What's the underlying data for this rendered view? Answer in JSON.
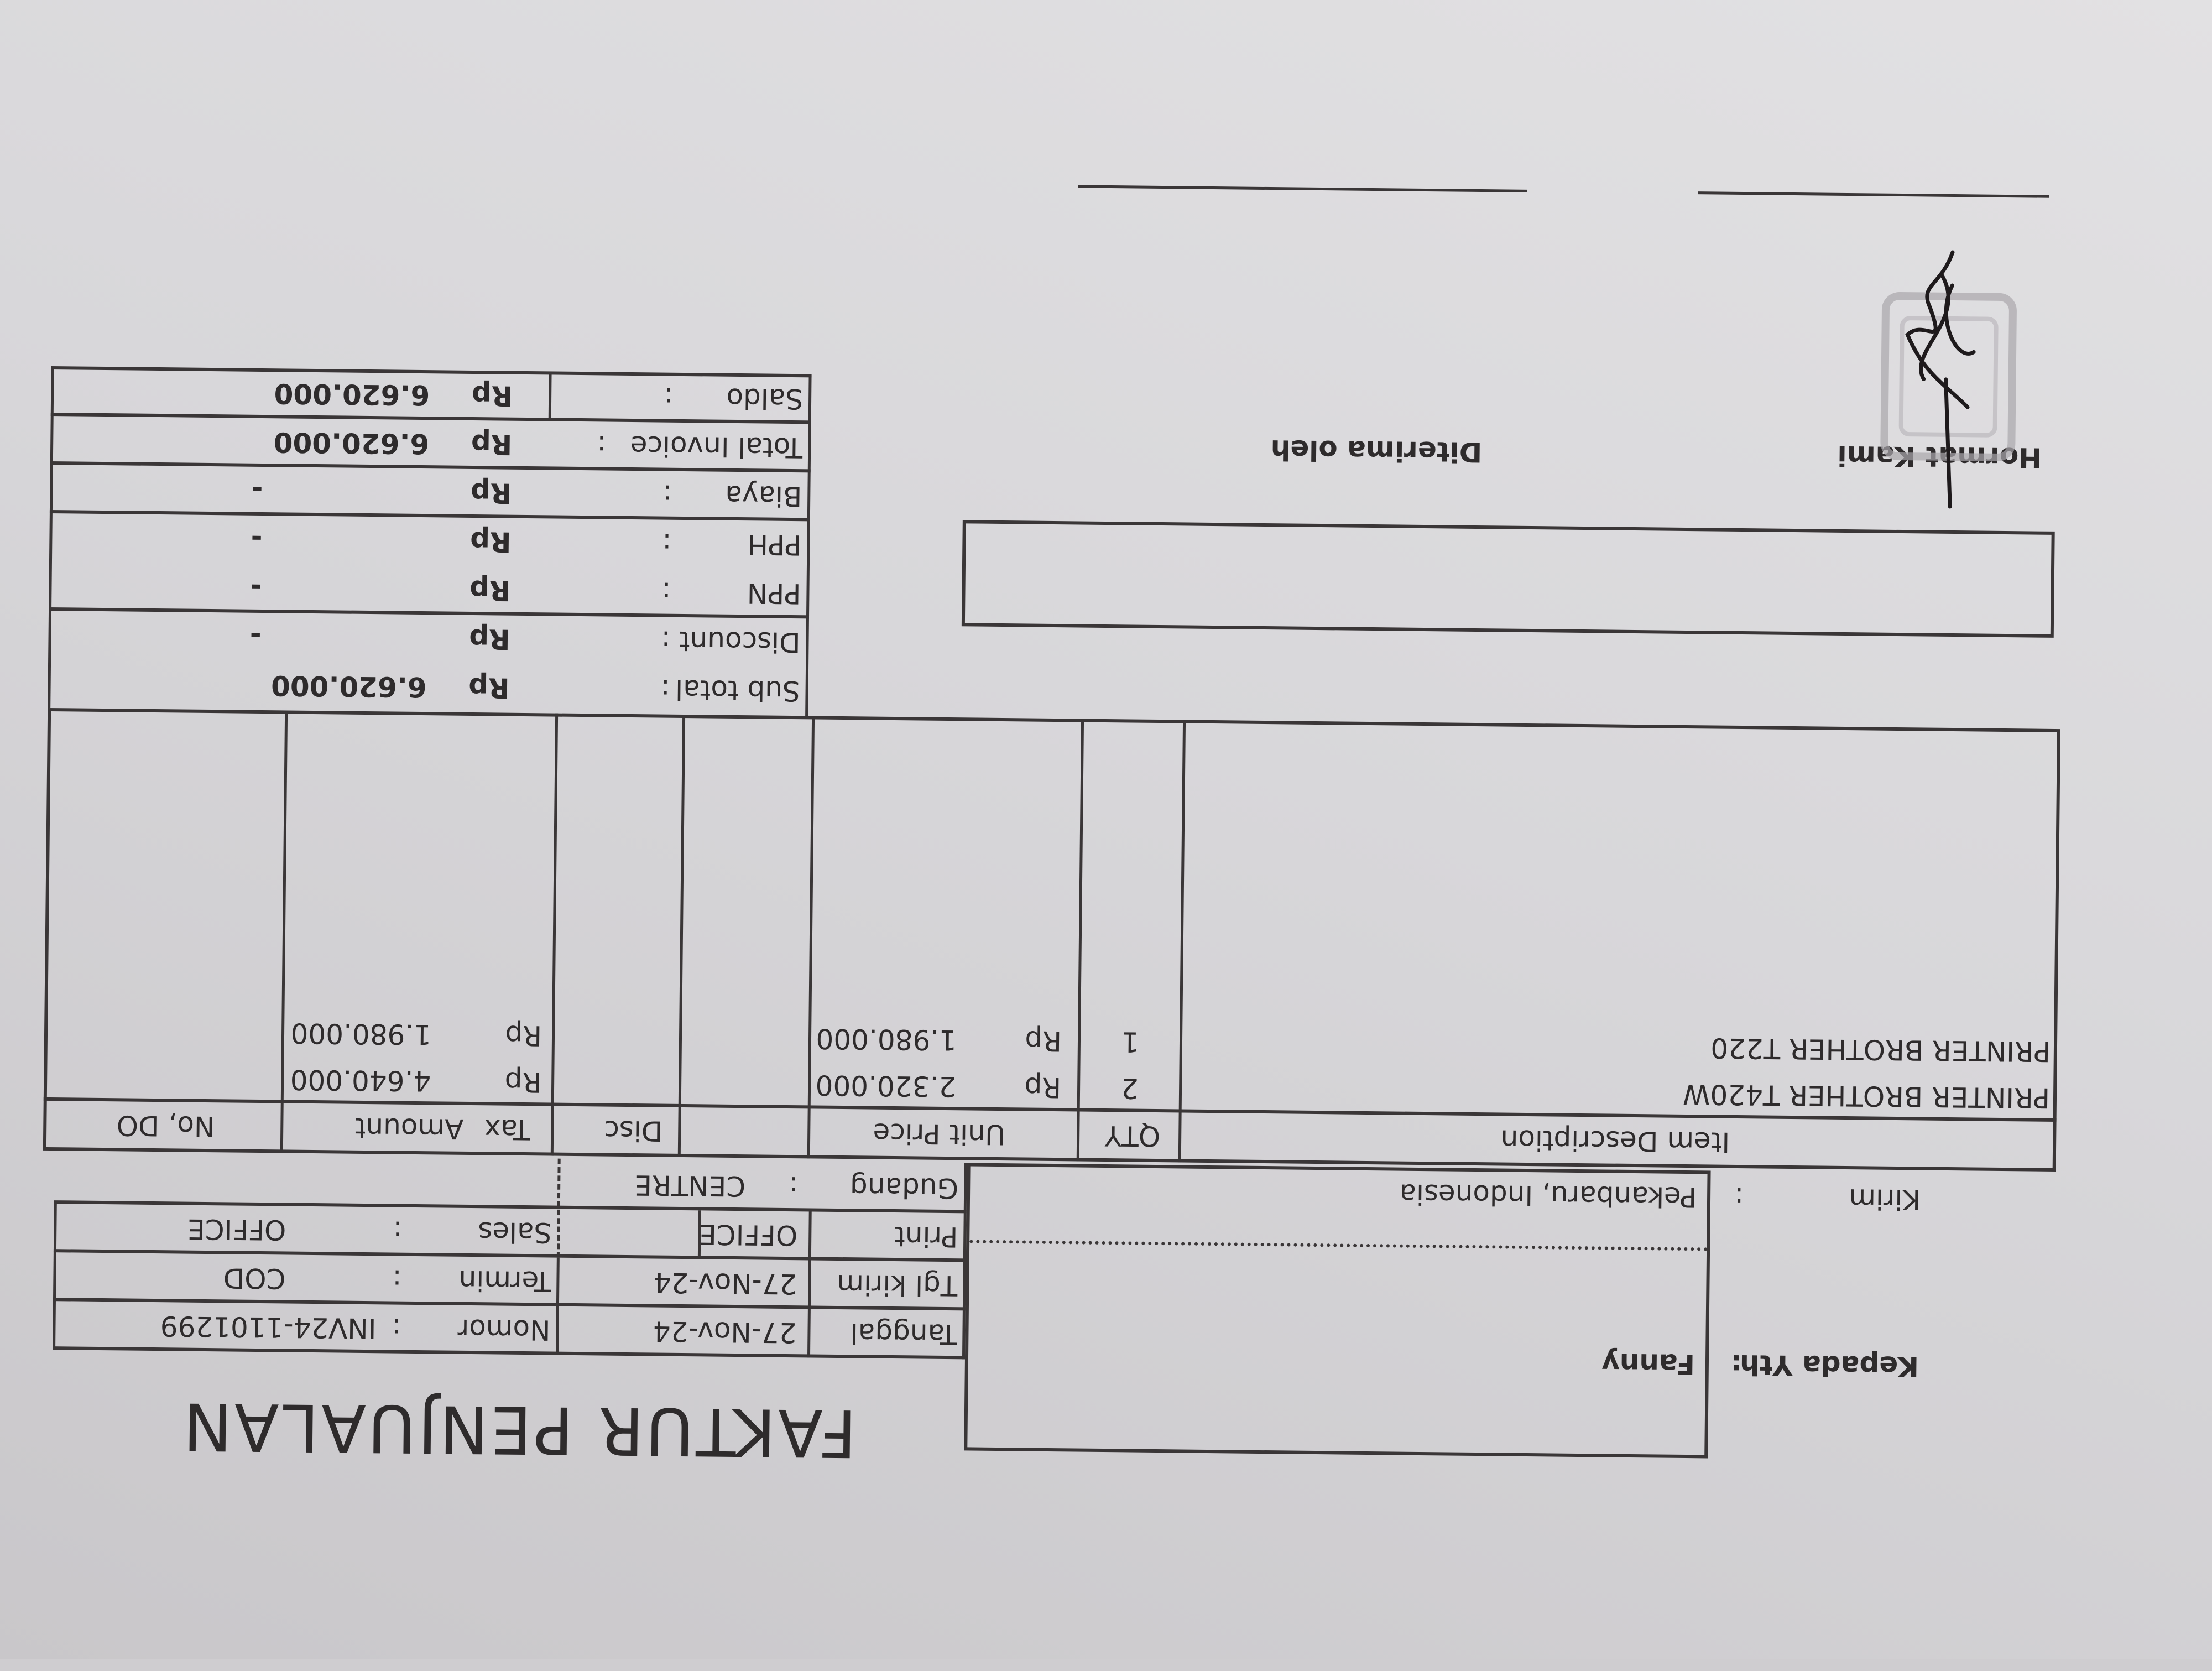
{
  "title": "FAKTUR PENJUALAN",
  "recipient": {
    "label": "Kepada Yth",
    "colon": ":",
    "name": "Fanny"
  },
  "shipping": {
    "label": "Kirim",
    "colon": ":",
    "address": "Pekanbaru, Indonesia"
  },
  "header": {
    "tanggal_label": "Tanggal",
    "tanggal": "27-Nov-24",
    "nomor_label": "Nomor",
    "nomor": "INV24-1101299",
    "tgl_kirim_label": "Tgl kirim",
    "tgl_kirim": "27-Nov-24",
    "termin_label": "Termin",
    "termin": "COD",
    "print_label": "Print",
    "print": "OFFICE",
    "sales_label": "Sales",
    "sales": "OFFICE",
    "gudang_label": "Gudang",
    "gudang": "CENTRE",
    "colon": ":"
  },
  "items_table": {
    "columns": [
      "Item Description",
      "QTY",
      "Unit Price",
      "Disc",
      "Tax",
      "Amount",
      "No, DO"
    ],
    "rows": [
      {
        "description": "PRINTER BROTHER T420W",
        "qty": "2",
        "currency": "Rp",
        "unit_price": "2.320.000",
        "disc": "",
        "tax": "",
        "amount": "4.640.000",
        "no_do": ""
      },
      {
        "description": "PRINTER BROTHER T220",
        "qty": "1",
        "currency": "Rp",
        "unit_price": "1.980.000",
        "disc": "",
        "tax": "",
        "amount": "1.980.000",
        "no_do": ""
      }
    ]
  },
  "summary": [
    {
      "label": "Sub total",
      "colon": ":",
      "currency": "Rp",
      "value": "6.620.000"
    },
    {
      "label": "Discount",
      "colon": ":",
      "currency": "Rp",
      "value": "-"
    },
    {
      "label": "PPN",
      "colon": ":",
      "currency": "Rp",
      "value": "-"
    },
    {
      "label": "PPH",
      "colon": ":",
      "currency": "Rp",
      "value": "-"
    },
    {
      "label": "Biaya",
      "colon": ":",
      "currency": "Rp",
      "value": "-"
    },
    {
      "label": "Total Invoice",
      "colon": ":",
      "currency": "Rp",
      "value": "6.620.000"
    },
    {
      "label": "Saldo",
      "colon": ":",
      "currency": "Rp",
      "value": "6.620.000"
    }
  ],
  "signatures": {
    "hormat_kami": "Hormat Kami",
    "diterima_oleh": "Diterima oleh"
  },
  "colors": {
    "ink": "#2e2b2c",
    "paper": "#d9d8da",
    "signature": "#1e1a1c"
  }
}
